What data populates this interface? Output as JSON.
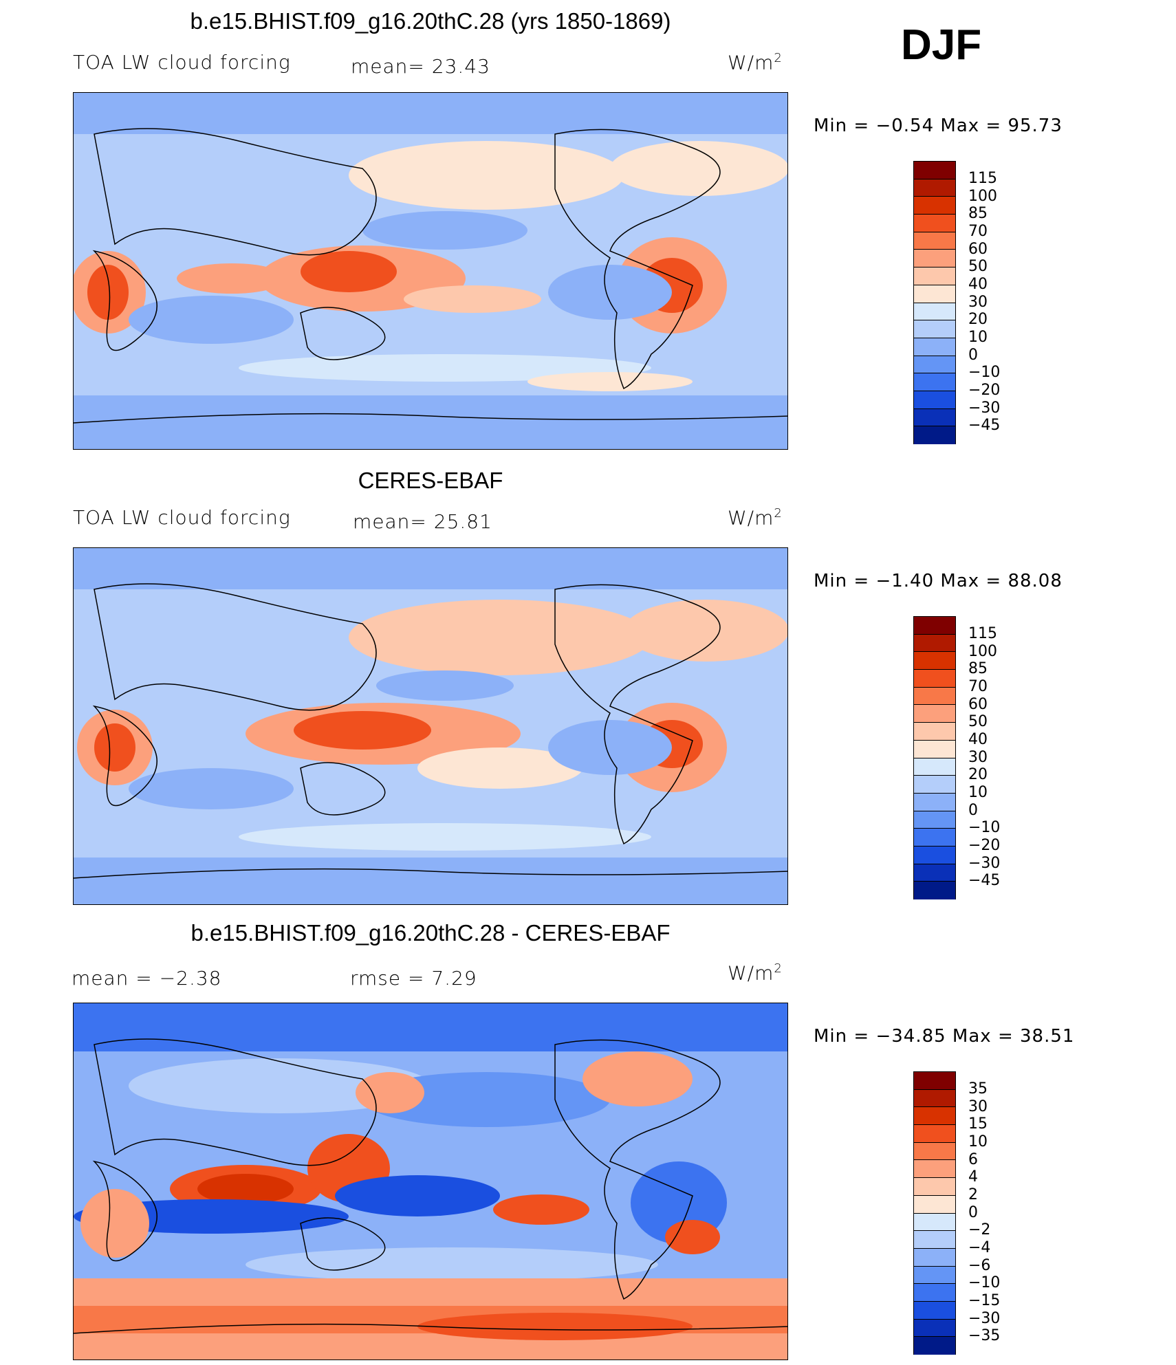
{
  "season": "DJF",
  "units_text": "W/m",
  "units_sup": "2",
  "panels": [
    {
      "title": "b.e15.BHIST.f09_g16.20thC.28 (yrs 1850-1869)",
      "left_label": "TOA LW cloud forcing",
      "mid_label": "mean=   23.43",
      "min_label": "Min  =    −0.54  Max  =    95.73",
      "levels": [
        "115",
        "100",
        "85",
        "70",
        "60",
        "50",
        "40",
        "30",
        "20",
        "10",
        "0",
        "−10",
        "−20",
        "−30",
        "−45"
      ]
    },
    {
      "title": "CERES-EBAF",
      "left_label": "TOA LW cloud forcing",
      "mid_label": "mean=   25.81",
      "min_label": "Min  =    −1.40  Max  =    88.08",
      "levels": [
        "115",
        "100",
        "85",
        "70",
        "60",
        "50",
        "40",
        "30",
        "20",
        "10",
        "0",
        "−10",
        "−20",
        "−30",
        "−45"
      ]
    },
    {
      "title": "b.e15.BHIST.f09_g16.20thC.28 - CERES-EBAF",
      "left_label": "mean  =    −2.38",
      "mid_label": "rmse  =      7.29",
      "min_label": "Min  =  −34.85  Max  =    38.51",
      "levels": [
        "35",
        "30",
        "15",
        "10",
        "6",
        "4",
        "2",
        "0",
        "−2",
        "−4",
        "−6",
        "−10",
        "−15",
        "−30",
        "−35"
      ]
    }
  ],
  "colors": {
    "scale": [
      "#7f0000",
      "#b01a00",
      "#d83200",
      "#f0501e",
      "#f87848",
      "#fca07c",
      "#fdc8ac",
      "#fde6d4",
      "#d6e8fb",
      "#b4cefa",
      "#8cb1f8",
      "#6495f5",
      "#3c73f0",
      "#1a4fe0",
      "#0a30b8",
      "#001a88"
    ],
    "land_line": "#000000"
  }
}
